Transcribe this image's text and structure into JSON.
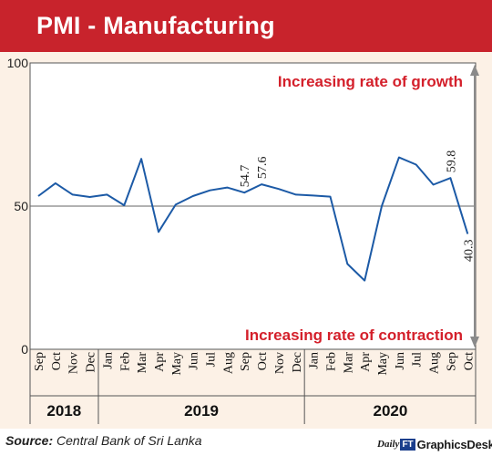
{
  "header": {
    "title": "PMI - Manufacturing"
  },
  "chart_data": {
    "type": "line",
    "title": "PMI - Manufacturing",
    "ylim": [
      0,
      100
    ],
    "yticks": [
      "0",
      "50",
      "100"
    ],
    "reference_line": 50,
    "grid": false,
    "categories": [
      "Sep",
      "Oct",
      "Nov",
      "Dec",
      "Jan",
      "Feb",
      "Mar",
      "Apr",
      "May",
      "Jun",
      "Jul",
      "Aug",
      "Sep",
      "Oct",
      "Nov",
      "Dec",
      "Jan",
      "Feb",
      "Mar",
      "Apr",
      "May",
      "Jun",
      "Jul",
      "Aug",
      "Sep",
      "Oct"
    ],
    "years": [
      {
        "label": "2018",
        "start": 0,
        "end": 3
      },
      {
        "label": "2019",
        "start": 4,
        "end": 15
      },
      {
        "label": "2020",
        "start": 16,
        "end": 25
      }
    ],
    "series": [
      {
        "values": [
          53.5,
          58.0,
          54.0,
          53.2,
          54.0,
          50.3,
          66.5,
          41.0,
          50.5,
          53.5,
          55.5,
          56.5,
          54.7,
          57.6,
          56.0,
          54.0,
          53.7,
          53.3,
          29.8,
          24.0,
          50.0,
          67.0,
          64.5,
          57.5,
          59.8,
          40.3
        ]
      }
    ],
    "data_labels": [
      {
        "index": 12,
        "text": "54.7"
      },
      {
        "index": 13,
        "text": "57.6"
      },
      {
        "index": 24,
        "text": "59.8"
      },
      {
        "index": 25,
        "text": "40.3"
      }
    ],
    "annotations": {
      "top": "Increasing rate of growth",
      "bottom": "Increasing rate of contraction"
    },
    "colors": {
      "line": "#1c5aa6",
      "banner": "#c8232c",
      "annotation": "#d4202b",
      "panel": "#fcf1e6",
      "arrow": "#8a8a8a"
    }
  },
  "footer": {
    "source_prefix": "Source:",
    "source_text": " Central Bank of Sri Lanka",
    "logo_daily": "Daily",
    "logo_ft": "FT",
    "logo_text": "GraphicsDesk"
  }
}
